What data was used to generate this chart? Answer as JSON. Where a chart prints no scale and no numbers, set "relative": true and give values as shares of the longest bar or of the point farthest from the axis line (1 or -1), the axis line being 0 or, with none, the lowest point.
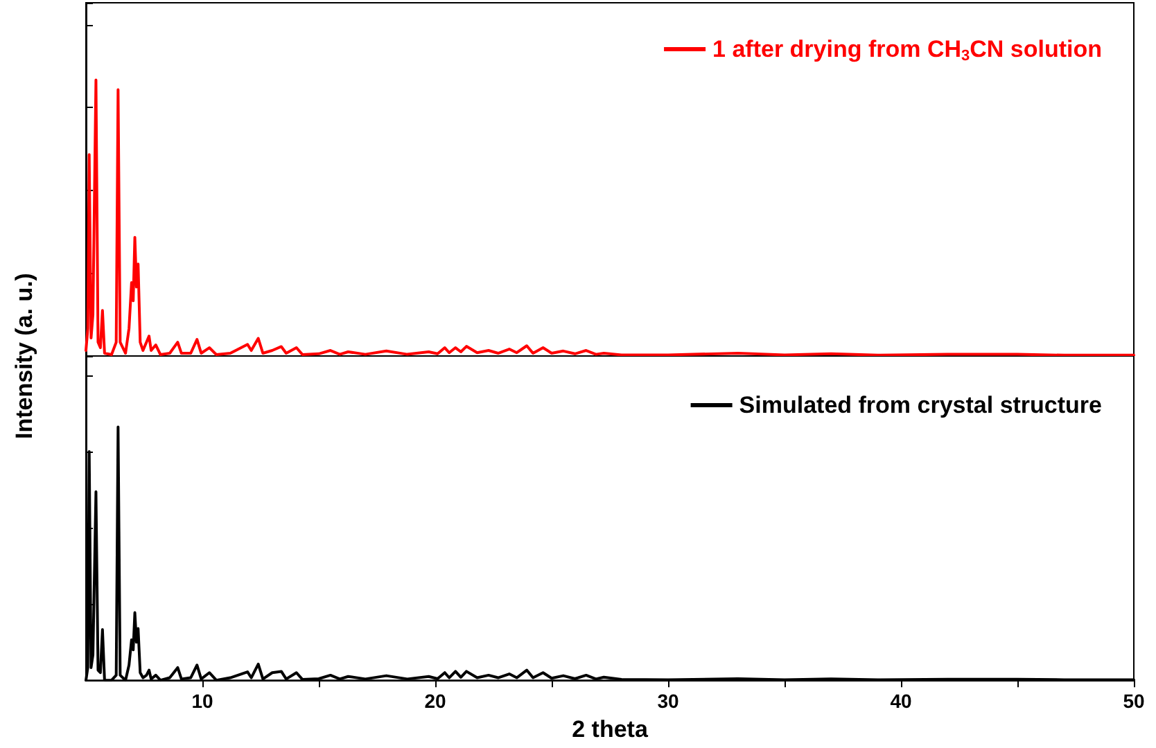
{
  "chart_data": [
    {
      "type": "line",
      "ylabel": "Intensity (a. u.)",
      "relative": true,
      "xlim": [
        5,
        50
      ],
      "xticks": [
        {
          "value": 10,
          "label": null
        },
        {
          "value": 15,
          "label": null
        },
        {
          "value": 20,
          "label": null
        },
        {
          "value": 25,
          "label": null
        },
        {
          "value": 30,
          "label": null
        },
        {
          "value": 35,
          "label": null
        },
        {
          "value": 40,
          "label": null
        },
        {
          "value": 45,
          "label": null
        },
        {
          "value": 50,
          "label": null
        }
      ],
      "tick_labels": false,
      "grid": false,
      "legend": "top right",
      "marker": "none",
      "line_style": "solid",
      "series": [
        {
          "name": "1 after drying from CH$_{3}$CN solution",
          "color": "#ff0000",
          "x": [
            5.0,
            5.08,
            5.14,
            5.22,
            5.3,
            5.43,
            5.52,
            5.62,
            5.71,
            5.8,
            6.1,
            6.3,
            6.38,
            6.47,
            6.7,
            6.85,
            6.96,
            7.03,
            7.1,
            7.17,
            7.24,
            7.33,
            7.45,
            7.6,
            7.71,
            7.8,
            8.0,
            8.2,
            8.6,
            8.94,
            9.1,
            9.5,
            9.77,
            9.95,
            10.3,
            10.6,
            11.2,
            11.94,
            12.1,
            12.4,
            12.6,
            13.0,
            13.39,
            13.6,
            14.04,
            14.3,
            15.0,
            15.5,
            15.9,
            16.26,
            17.0,
            17.9,
            18.8,
            19.72,
            20.1,
            20.41,
            20.6,
            20.87,
            21.1,
            21.34,
            21.8,
            22.29,
            22.7,
            23.18,
            23.5,
            23.93,
            24.2,
            24.63,
            25.0,
            25.5,
            26.0,
            26.48,
            26.9,
            27.24,
            28.0,
            30.0,
            33.0,
            35.0,
            37.0,
            39.0,
            42.0,
            45.0,
            47.0,
            50.0
          ],
          "values": [
            0.02,
            0.1,
            0.73,
            0.065,
            0.15,
            1.0,
            0.05,
            0.03,
            0.165,
            0.01,
            0.005,
            0.05,
            0.965,
            0.05,
            0.01,
            0.1,
            0.266,
            0.2,
            0.43,
            0.25,
            0.333,
            0.05,
            0.02,
            0.05,
            0.072,
            0.02,
            0.04,
            0.005,
            0.01,
            0.05,
            0.01,
            0.01,
            0.06,
            0.01,
            0.03,
            0.005,
            0.01,
            0.042,
            0.02,
            0.064,
            0.01,
            0.02,
            0.034,
            0.01,
            0.03,
            0.005,
            0.008,
            0.02,
            0.006,
            0.015,
            0.006,
            0.018,
            0.006,
            0.015,
            0.008,
            0.03,
            0.012,
            0.03,
            0.015,
            0.035,
            0.012,
            0.02,
            0.01,
            0.025,
            0.012,
            0.037,
            0.01,
            0.03,
            0.01,
            0.018,
            0.008,
            0.02,
            0.006,
            0.01,
            0.004,
            0.004,
            0.01,
            0.004,
            0.008,
            0.003,
            0.006,
            0.006,
            0.003,
            0.003
          ]
        }
      ]
    },
    {
      "type": "line",
      "xlabel": "2 theta",
      "relative": true,
      "xlim": [
        5,
        50
      ],
      "xticks": [
        10,
        {
          "value": 15,
          "label": null
        },
        20,
        {
          "value": 25,
          "label": null
        },
        30,
        {
          "value": 35,
          "label": null
        },
        40,
        {
          "value": 45,
          "label": null
        },
        50
      ],
      "tick_labels": "x",
      "grid": false,
      "legend": "top right",
      "marker": "none",
      "line_style": "solid",
      "series": [
        {
          "name": "Simulated from crystal structure",
          "color": "#000000",
          "x": [
            5.0,
            5.08,
            5.14,
            5.22,
            5.3,
            5.43,
            5.52,
            5.62,
            5.71,
            5.8,
            6.1,
            6.3,
            6.38,
            6.47,
            6.7,
            6.85,
            6.96,
            7.03,
            7.1,
            7.17,
            7.24,
            7.33,
            7.45,
            7.6,
            7.71,
            7.8,
            8.0,
            8.2,
            8.6,
            8.94,
            9.1,
            9.5,
            9.77,
            9.95,
            10.3,
            10.6,
            11.2,
            11.94,
            12.1,
            12.4,
            12.6,
            13.0,
            13.39,
            13.6,
            14.04,
            14.3,
            15.0,
            15.5,
            15.9,
            16.26,
            17.0,
            17.9,
            18.8,
            19.72,
            20.1,
            20.41,
            20.6,
            20.87,
            21.1,
            21.34,
            21.8,
            22.29,
            22.7,
            23.18,
            23.5,
            23.93,
            24.2,
            24.63,
            25.0,
            25.5,
            26.0,
            26.48,
            26.9,
            27.24,
            28.0,
            30.0,
            33.0,
            35.0,
            37.0,
            39.0,
            42.0,
            45.0,
            47.0,
            50.0
          ],
          "values": [
            0.0,
            0.05,
            0.903,
            0.05,
            0.1,
            0.744,
            0.04,
            0.03,
            0.2,
            0.0,
            0.0,
            0.02,
            1.0,
            0.02,
            0.0,
            0.06,
            0.16,
            0.12,
            0.267,
            0.15,
            0.204,
            0.03,
            0.01,
            0.02,
            0.04,
            0.005,
            0.02,
            0.0,
            0.01,
            0.05,
            0.005,
            0.01,
            0.06,
            0.005,
            0.03,
            0.0,
            0.01,
            0.033,
            0.01,
            0.064,
            0.005,
            0.03,
            0.035,
            0.005,
            0.03,
            0.003,
            0.006,
            0.02,
            0.005,
            0.015,
            0.005,
            0.018,
            0.005,
            0.015,
            0.006,
            0.03,
            0.01,
            0.035,
            0.012,
            0.035,
            0.01,
            0.02,
            0.01,
            0.025,
            0.01,
            0.04,
            0.01,
            0.03,
            0.008,
            0.018,
            0.006,
            0.02,
            0.005,
            0.012,
            0.003,
            0.002,
            0.006,
            0.002,
            0.005,
            0.002,
            0.004,
            0.004,
            0.002,
            0.002
          ]
        }
      ]
    }
  ]
}
